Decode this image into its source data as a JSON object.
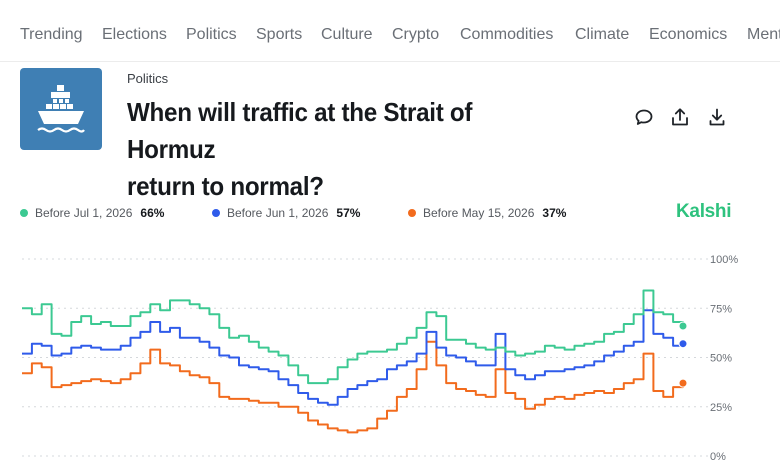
{
  "nav": {
    "items": [
      "Trending",
      "Elections",
      "Politics",
      "Sports",
      "Culture",
      "Crypto",
      "Commodities",
      "Climate",
      "Economics",
      "Mentions"
    ]
  },
  "market": {
    "category": "Politics",
    "title_line1": "When will traffic at the Strait of Hormuz",
    "title_line2": "return to normal?",
    "thumbnail_icon": "cargo-ship-icon",
    "actions": [
      "comment-icon",
      "share-icon",
      "download-icon"
    ]
  },
  "brand": {
    "name": "Kalshi",
    "color": "#2ec27e"
  },
  "legend": [
    {
      "label": "Before Jul 1, 2026",
      "value": "66%",
      "color": "#3cc992"
    },
    {
      "label": "Before Jun 1, 2026",
      "value": "57%",
      "color": "#2f5bea"
    },
    {
      "label": "Before May 15, 2026",
      "value": "37%",
      "color": "#f26b1d"
    }
  ],
  "chart_data": {
    "type": "line",
    "ylim": [
      0,
      100
    ],
    "yticks": [
      "100%",
      "75%",
      "50%",
      "25%",
      "0%"
    ],
    "grid": true,
    "legend_position": "top",
    "series": [
      {
        "name": "Before Jul 1, 2026",
        "color": "#3cc992",
        "values": [
          75,
          72,
          77,
          62,
          61,
          68,
          71,
          67,
          68,
          66,
          66,
          71,
          73,
          77,
          74,
          79,
          79,
          77,
          75,
          72,
          65,
          60,
          61,
          58,
          55,
          53,
          51,
          46,
          41,
          37,
          37,
          39,
          45,
          49,
          52,
          53,
          53,
          54,
          57,
          60,
          65,
          73,
          71,
          59,
          59,
          57,
          55,
          54,
          55,
          53,
          51,
          52,
          53,
          56,
          55,
          54,
          56,
          57,
          58,
          62,
          63,
          67,
          72,
          84,
          73,
          72,
          68,
          66
        ]
      },
      {
        "name": "Before Jun 1, 2026",
        "color": "#2f5bea",
        "values": [
          52,
          57,
          56,
          51,
          52,
          55,
          56,
          55,
          54,
          54,
          56,
          60,
          63,
          68,
          63,
          65,
          60,
          60,
          58,
          55,
          51,
          50,
          46,
          45,
          44,
          43,
          39,
          36,
          32,
          29,
          27,
          26,
          30,
          34,
          36,
          38,
          39,
          44,
          46,
          48,
          52,
          63,
          55,
          51,
          50,
          48,
          46,
          46,
          62,
          44,
          41,
          39,
          41,
          43,
          43,
          44,
          45,
          46,
          48,
          51,
          53,
          56,
          58,
          74,
          62,
          60,
          56,
          57
        ]
      },
      {
        "name": "Before May 15, 2026",
        "color": "#f26b1d",
        "values": [
          42,
          47,
          45,
          35,
          36,
          37,
          38,
          39,
          38,
          37,
          39,
          42,
          47,
          54,
          47,
          46,
          43,
          41,
          40,
          37,
          30,
          29,
          29,
          28,
          27,
          27,
          25,
          25,
          22,
          18,
          16,
          14,
          13,
          12,
          13,
          14,
          19,
          23,
          30,
          34,
          44,
          58,
          46,
          37,
          34,
          33,
          31,
          30,
          44,
          32,
          29,
          24,
          26,
          29,
          30,
          29,
          31,
          32,
          33,
          32,
          34,
          37,
          39,
          52,
          33,
          30,
          35,
          37
        ]
      }
    ]
  }
}
